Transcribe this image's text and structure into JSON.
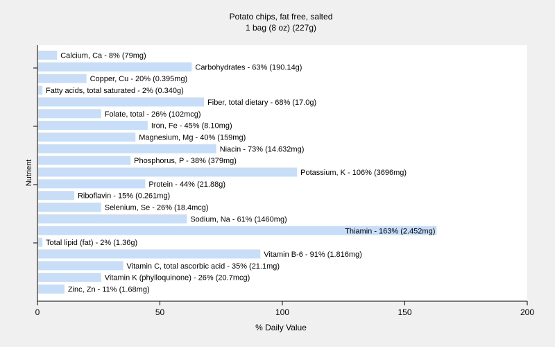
{
  "chart_data": {
    "type": "bar",
    "orientation": "horizontal",
    "title": "Potato chips, fat free, salted",
    "subtitle": "1 bag (8 oz) (227g)",
    "xlabel": "% Daily Value",
    "ylabel": "Nutrient",
    "xlim": [
      0,
      200
    ],
    "xticks": [
      "0",
      "50",
      "100",
      "150",
      "200"
    ],
    "grid": false,
    "bar_color": "#c7ddf8",
    "categories": [
      "Calcium, Ca",
      "Carbohydrates",
      "Copper, Cu",
      "Fatty acids, total saturated",
      "Fiber, total dietary",
      "Folate, total",
      "Iron, Fe",
      "Magnesium, Mg",
      "Niacin",
      "Phosphorus, P",
      "Potassium, K",
      "Protein",
      "Riboflavin",
      "Selenium, Se",
      "Sodium, Na",
      "Thiamin",
      "Total lipid (fat)",
      "Vitamin B-6",
      "Vitamin C, total ascorbic acid",
      "Vitamin K (phylloquinone)",
      "Zinc, Zn"
    ],
    "values": [
      8,
      63,
      20,
      2,
      68,
      26,
      45,
      40,
      73,
      38,
      106,
      44,
      15,
      26,
      61,
      163,
      2,
      91,
      35,
      26,
      11
    ],
    "labels": [
      "Calcium, Ca - 8% (79mg)",
      "Carbohydrates - 63% (190.14g)",
      "Copper, Cu - 20% (0.395mg)",
      "Fatty acids, total saturated - 2% (0.340g)",
      "Fiber, total dietary - 68% (17.0g)",
      "Folate, total - 26% (102mcg)",
      "Iron, Fe - 45% (8.10mg)",
      "Magnesium, Mg - 40% (159mg)",
      "Niacin - 73% (14.632mg)",
      "Phosphorus, P - 38% (379mg)",
      "Potassium, K - 106% (3696mg)",
      "Protein - 44% (21.88g)",
      "Riboflavin - 15% (0.261mg)",
      "Selenium, Se - 26% (18.4mcg)",
      "Sodium, Na - 61% (1460mg)",
      "Thiamin - 163% (2.452mg)",
      "Total lipid (fat) - 2% (1.36g)",
      "Vitamin B-6 - 91% (1.816mg)",
      "Vitamin C, total ascorbic acid - 35% (21.1mg)",
      "Vitamin K (phylloquinone) - 26% (20.7mcg)",
      "Zinc, Zn - 11% (1.68mg)"
    ]
  }
}
